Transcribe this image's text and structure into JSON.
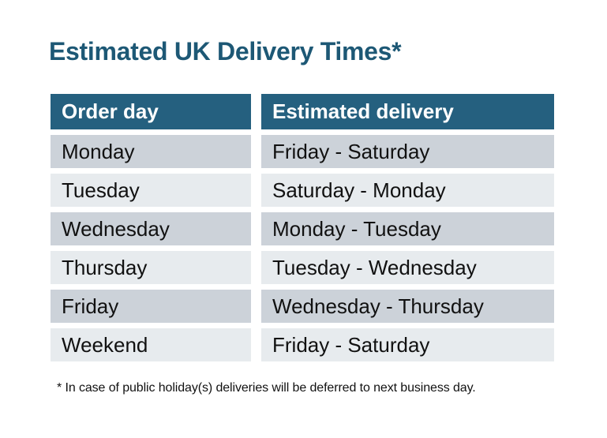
{
  "title": "Estimated UK Delivery Times*",
  "table": {
    "columns": [
      "Order day",
      "Estimated delivery"
    ],
    "rows": [
      [
        "Monday",
        "Friday - Saturday"
      ],
      [
        "Tuesday",
        "Saturday - Monday"
      ],
      [
        "Wednesday",
        "Monday - Tuesday"
      ],
      [
        "Thursday",
        "Tuesday - Wednesday"
      ],
      [
        "Friday",
        "Wednesday - Thursday"
      ],
      [
        "Weekend",
        "Friday - Saturday"
      ]
    ]
  },
  "footnote": "* In case of public holiday(s) deliveries will be deferred to next business day.",
  "colors": {
    "title_color": "#1d5875",
    "header_bg": "#25607f",
    "header_text": "#ffffff",
    "row_dark": "#ccd2d9",
    "row_light": "#e7ebee",
    "text_color": "#111111",
    "page_bg": "#ffffff"
  }
}
